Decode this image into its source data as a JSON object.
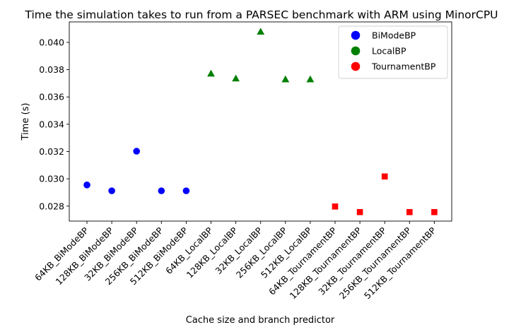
{
  "chart_data": {
    "type": "scatter",
    "title": "Time the simulation takes to run from a PARSEC benchmark with ARM using MinorCPU",
    "xlabel": "Cache size and branch predictor",
    "ylabel": "Time (s)",
    "categories": [
      "64KB_BiModeBP",
      "128KB_BiModeBP",
      "32KB_BiModeBP",
      "256KB_BiModeBP",
      "512KB_BiModeBP",
      "64KB_LocalBP",
      "128KB_LocalBP",
      "32KB_LocalBP",
      "256KB_LocalBP",
      "512KB_LocalBP",
      "64KB_TournamentBP",
      "128KB_TournamentBP",
      "32KB_TournamentBP",
      "256KB_TournamentBP",
      "512KB_TournamentBP"
    ],
    "ylim": [
      0.0269,
      0.0415
    ],
    "yticks": [
      "0.028",
      "0.030",
      "0.032",
      "0.034",
      "0.036",
      "0.038",
      "0.040"
    ],
    "grid": false,
    "legend_position": "top-right",
    "series": [
      {
        "name": "BiModeBP",
        "color": "#0000ff",
        "marker": "circle",
        "points": [
          {
            "x": "64KB_BiModeBP",
            "y": 0.02955
          },
          {
            "x": "128KB_BiModeBP",
            "y": 0.02912
          },
          {
            "x": "32KB_BiModeBP",
            "y": 0.03202
          },
          {
            "x": "256KB_BiModeBP",
            "y": 0.02912
          },
          {
            "x": "512KB_BiModeBP",
            "y": 0.02912
          }
        ]
      },
      {
        "name": "LocalBP",
        "color": "#008000",
        "marker": "triangle",
        "points": [
          {
            "x": "64KB_LocalBP",
            "y": 0.03772
          },
          {
            "x": "128KB_LocalBP",
            "y": 0.03736
          },
          {
            "x": "32KB_LocalBP",
            "y": 0.04079
          },
          {
            "x": "256KB_LocalBP",
            "y": 0.0373
          },
          {
            "x": "512KB_LocalBP",
            "y": 0.0373
          }
        ]
      },
      {
        "name": "TournamentBP",
        "color": "#ff0000",
        "marker": "square",
        "points": [
          {
            "x": "64KB_TournamentBP",
            "y": 0.02797
          },
          {
            "x": "128KB_TournamentBP",
            "y": 0.02756
          },
          {
            "x": "32KB_TournamentBP",
            "y": 0.03017
          },
          {
            "x": "256KB_TournamentBP",
            "y": 0.02756
          },
          {
            "x": "512KB_TournamentBP",
            "y": 0.02756
          }
        ]
      }
    ]
  }
}
